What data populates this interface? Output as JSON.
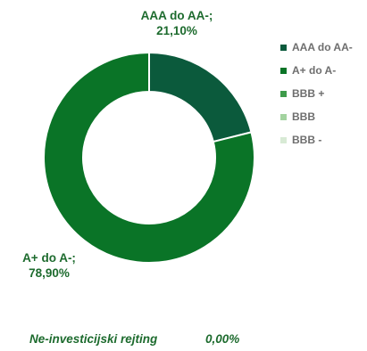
{
  "chart_data": {
    "type": "pie",
    "donut": true,
    "categories": [
      "AAA do AA-",
      "A+ do A-",
      "BBB +",
      "BBB",
      "BBB -"
    ],
    "values": [
      21.1,
      78.9,
      0,
      0,
      0
    ],
    "colors": [
      "#0b5a3c",
      "#0a7427",
      "#3e9b4a",
      "#a3d3a0",
      "#d8ead5"
    ],
    "data_labels": [
      {
        "category": "AAA do AA-;",
        "value": "21,10%"
      },
      {
        "category": "A+ do A-;",
        "value": "78,90%"
      }
    ],
    "legend_position": "right"
  },
  "footer": {
    "label": "Ne-investicijski rejting",
    "value": "0,00%"
  }
}
